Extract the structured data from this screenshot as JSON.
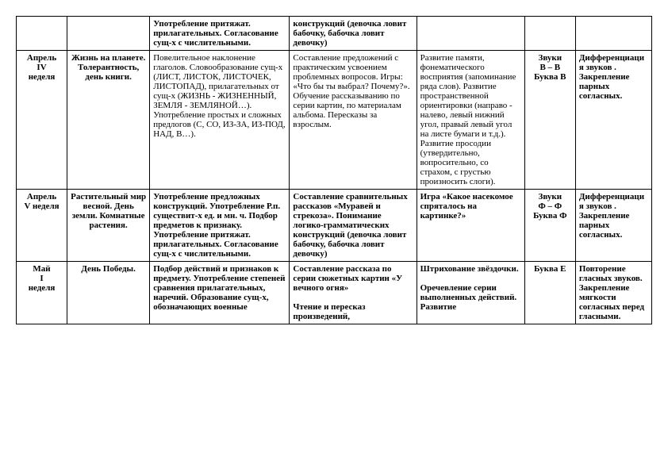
{
  "rows": [
    {
      "c1": "",
      "c2": "",
      "c3": "Употребление притяжат. прилагательных. Согласование сущ-х с числительными.",
      "c4": "конструкций (девочка ловит бабочку, бабочка ловит девочку)",
      "c5": "",
      "c6": "",
      "c7": ""
    },
    {
      "c1": "Апрель\nIV\nнеделя",
      "c2": "Жизнь на планете. Толерантность, день книги.",
      "c3": "Повелительное наклонение глаголов. Словообразование сущ-х (ЛИСТ, ЛИСТОК, ЛИСТОЧЕК, ЛИСТОПАД), прилагательных от сущ-х (ЖИЗНЬ - ЖИЗНЕННЫЙ, ЗЕМЛЯ - ЗЕМЛЯНОЙ…). Употребление простых и сложных предлогов (С, СО, ИЗ-ЗА, ИЗ-ПОД, НАД, В…).",
      "c4": "Составление предложений с практическим усвоением проблемных вопросов. Игры: «Что бы ты выбрал? Почему?». Обучение рассказыванию по серии картин, по материалам альбома. Пересказы за взрослым.",
      "c5": "Развитие памяти, фонематического восприятия (запоминание ряда слов). Развитие пространственной ориентировки (направо - налево, левый нижний угол, правый левый угол на листе бумаги и т.д.). Развитие просодии (утвердительно, вопросительно, со страхом, с грустью произносить слоги).",
      "c6": "Звуки\nВ – В\nБуква В",
      "c7": "Дифференциация звуков . Закрепление парных согласных."
    },
    {
      "c1": "Апрель\nV неделя",
      "c2": "Растительный мир весной. День земли. Комнатные растения.",
      "c3": "Употребление предложных конструкций. Употребление Р.п. существит-х ед. и мн. ч. Подбор предметов к признаку. Употребление притяжат. прилагательных. Согласование сущ-х с числительными.",
      "c4": "Составление сравнительных рассказов «Муравей и стрекоза». Понимание логико-грамматических конструкций (девочка ловит бабочку, бабочка ловит девочку)",
      "c5": "Игра «Какое насекомое спряталось на картинке?»",
      "c6": "Звуки\nФ – Ф\nБуква Ф",
      "c7": "Дифференциация звуков . Закрепление парных согласных."
    },
    {
      "c1": "Май\nI\nнеделя",
      "c2": "День Победы.",
      "c3": "Подбор действий и признаков к предмету. Употребление степеней сравнения прилагательных, наречий. Образование сущ-х, обозначающих военные",
      "c4": "Составление рассказа по серии сюжетных картин «У вечного огня»\n\nЧтение и пересказ произведений,",
      "c5": "Штрихование звёздочки.\n\nОречевление серии выполненных действий. Развитие",
      "c6": "Буква Е",
      "c7": "Повторение гласных звуков. Закрепление мягкости согласных перед гласными."
    }
  ]
}
